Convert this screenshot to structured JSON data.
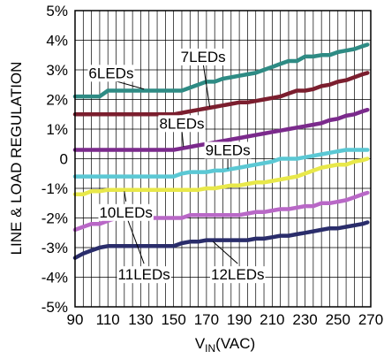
{
  "chart_data": {
    "type": "line",
    "title": "",
    "xlabel": "V",
    "xlabel_sub": "IN",
    "xlabel_unit": "(VAC)",
    "ylabel": "LINE & LOAD REGULATION",
    "xlim": [
      90,
      270
    ],
    "ylim": [
      -5,
      5
    ],
    "x_ticks": [
      "90",
      "110",
      "130",
      "150",
      "170",
      "190",
      "210",
      "230",
      "250",
      "270"
    ],
    "y_ticks": [
      "5%",
      "4%",
      "3%",
      "2%",
      "1%",
      "0",
      "-1%",
      "-2%",
      "-3%",
      "-4%",
      "-5%"
    ],
    "grid": true,
    "x_step": 5,
    "series": [
      {
        "name": "6LEDs",
        "color": "#2e8b84",
        "x": [
          90,
          95,
          100,
          105,
          110,
          115,
          120,
          125,
          130,
          135,
          140,
          145,
          150,
          155,
          160,
          165,
          170,
          175,
          180,
          185,
          190,
          195,
          200,
          205,
          210,
          215,
          220,
          225,
          230,
          235,
          240,
          245,
          250,
          255,
          260,
          265,
          268
        ],
        "values": [
          2.1,
          2.1,
          2.1,
          2.1,
          2.3,
          2.3,
          2.3,
          2.3,
          2.3,
          2.3,
          2.3,
          2.3,
          2.3,
          2.3,
          2.4,
          2.5,
          2.6,
          2.6,
          2.7,
          2.75,
          2.8,
          2.85,
          2.9,
          3.0,
          3.1,
          3.2,
          3.3,
          3.3,
          3.45,
          3.45,
          3.5,
          3.5,
          3.6,
          3.65,
          3.7,
          3.8,
          3.85
        ]
      },
      {
        "name": "7LEDs",
        "color": "#7b1e2e",
        "x": [
          90,
          95,
          100,
          105,
          110,
          115,
          120,
          125,
          130,
          135,
          140,
          145,
          150,
          155,
          160,
          165,
          170,
          175,
          180,
          185,
          190,
          195,
          200,
          205,
          210,
          215,
          220,
          225,
          230,
          235,
          240,
          245,
          250,
          255,
          260,
          265,
          268
        ],
        "values": [
          1.5,
          1.5,
          1.5,
          1.5,
          1.5,
          1.5,
          1.5,
          1.5,
          1.5,
          1.5,
          1.5,
          1.5,
          1.5,
          1.55,
          1.6,
          1.65,
          1.7,
          1.75,
          1.8,
          1.85,
          1.9,
          1.9,
          1.95,
          2.0,
          2.05,
          2.1,
          2.2,
          2.3,
          2.3,
          2.35,
          2.45,
          2.5,
          2.6,
          2.65,
          2.75,
          2.85,
          2.9
        ]
      },
      {
        "name": "8LEDs",
        "color": "#7b2a8c",
        "x": [
          90,
          95,
          100,
          105,
          110,
          115,
          120,
          125,
          130,
          135,
          140,
          145,
          150,
          155,
          160,
          165,
          170,
          175,
          180,
          185,
          190,
          195,
          200,
          205,
          210,
          215,
          220,
          225,
          230,
          235,
          240,
          245,
          250,
          255,
          260,
          265,
          268
        ],
        "values": [
          0.3,
          0.3,
          0.3,
          0.3,
          0.3,
          0.3,
          0.3,
          0.3,
          0.3,
          0.3,
          0.3,
          0.3,
          0.3,
          0.35,
          0.4,
          0.45,
          0.5,
          0.55,
          0.6,
          0.65,
          0.7,
          0.75,
          0.8,
          0.85,
          0.9,
          0.95,
          1.0,
          1.05,
          1.1,
          1.15,
          1.2,
          1.3,
          1.35,
          1.45,
          1.5,
          1.6,
          1.65
        ]
      },
      {
        "name": "9LEDs",
        "color": "#5bc8d4",
        "x": [
          90,
          95,
          100,
          105,
          110,
          115,
          120,
          125,
          130,
          135,
          140,
          145,
          150,
          155,
          160,
          165,
          170,
          175,
          180,
          185,
          190,
          195,
          200,
          205,
          210,
          215,
          220,
          225,
          230,
          235,
          240,
          245,
          250,
          255,
          260,
          265,
          268
        ],
        "values": [
          -0.6,
          -0.6,
          -0.6,
          -0.6,
          -0.6,
          -0.6,
          -0.6,
          -0.6,
          -0.6,
          -0.6,
          -0.6,
          -0.6,
          -0.6,
          -0.5,
          -0.45,
          -0.45,
          -0.45,
          -0.4,
          -0.4,
          -0.35,
          -0.3,
          -0.25,
          -0.2,
          -0.15,
          -0.1,
          0.0,
          0.0,
          0.0,
          0.05,
          0.1,
          0.15,
          0.2,
          0.25,
          0.3,
          0.3,
          0.3,
          0.3
        ]
      },
      {
        "name": "10LEDs",
        "color": "#e8e84a",
        "x": [
          90,
          95,
          100,
          105,
          110,
          115,
          120,
          125,
          130,
          135,
          140,
          145,
          150,
          155,
          160,
          165,
          170,
          175,
          180,
          185,
          190,
          195,
          200,
          205,
          210,
          215,
          220,
          225,
          230,
          235,
          240,
          245,
          250,
          255,
          260,
          265,
          268
        ],
        "values": [
          -1.2,
          -1.2,
          -1.1,
          -1.1,
          -1.05,
          -1.05,
          -1.05,
          -1.05,
          -1.05,
          -1.05,
          -1.05,
          -1.05,
          -1.05,
          -1.05,
          -1.05,
          -1.05,
          -1.0,
          -1.0,
          -0.95,
          -0.9,
          -0.9,
          -0.85,
          -0.8,
          -0.8,
          -0.75,
          -0.7,
          -0.65,
          -0.6,
          -0.5,
          -0.4,
          -0.3,
          -0.25,
          -0.2,
          -0.2,
          -0.1,
          -0.05,
          0.0
        ]
      },
      {
        "name": "11LEDs",
        "color": "#b968c7",
        "x": [
          90,
          95,
          100,
          105,
          110,
          115,
          120,
          125,
          130,
          135,
          140,
          145,
          150,
          155,
          160,
          165,
          170,
          175,
          180,
          185,
          190,
          195,
          200,
          205,
          210,
          215,
          220,
          225,
          230,
          235,
          240,
          245,
          250,
          255,
          260,
          265,
          268
        ],
        "values": [
          -2.4,
          -2.3,
          -2.2,
          -2.2,
          -2.1,
          -2.0,
          -2.0,
          -2.0,
          -2.0,
          -2.0,
          -2.0,
          -2.0,
          -2.0,
          -2.0,
          -1.9,
          -1.9,
          -1.9,
          -1.9,
          -1.9,
          -1.9,
          -1.9,
          -1.85,
          -1.8,
          -1.8,
          -1.75,
          -1.7,
          -1.7,
          -1.65,
          -1.6,
          -1.6,
          -1.5,
          -1.5,
          -1.45,
          -1.4,
          -1.3,
          -1.2,
          -1.15
        ]
      },
      {
        "name": "12LEDs",
        "color": "#2a2d6b",
        "x": [
          90,
          95,
          100,
          105,
          110,
          115,
          120,
          125,
          130,
          135,
          140,
          145,
          150,
          155,
          160,
          165,
          170,
          175,
          180,
          185,
          190,
          195,
          200,
          205,
          210,
          215,
          220,
          225,
          230,
          235,
          240,
          245,
          250,
          255,
          260,
          265,
          268
        ],
        "values": [
          -3.35,
          -3.2,
          -3.1,
          -3.0,
          -2.95,
          -2.95,
          -2.95,
          -2.95,
          -2.95,
          -2.95,
          -2.95,
          -2.95,
          -2.95,
          -2.85,
          -2.8,
          -2.8,
          -2.75,
          -2.75,
          -2.75,
          -2.75,
          -2.75,
          -2.75,
          -2.7,
          -2.7,
          -2.65,
          -2.6,
          -2.6,
          -2.55,
          -2.5,
          -2.45,
          -2.4,
          -2.35,
          -2.35,
          -2.3,
          -2.25,
          -2.2,
          -2.15
        ]
      }
    ],
    "annotations": [
      {
        "text": "6LEDs",
        "x": 112,
        "y": 2.9,
        "arrow_to": [
          132,
          2.35
        ]
      },
      {
        "text": "7LEDs",
        "x": 168,
        "y": 3.45,
        "arrow_to": [
          172,
          1.75
        ]
      },
      {
        "text": "8LEDs",
        "x": 155,
        "y": 1.2,
        "arrow_to": [
          156,
          0.4
        ]
      },
      {
        "text": "9LEDs",
        "x": 183,
        "y": 0.3,
        "arrow_to": [
          183,
          -0.35
        ]
      },
      {
        "text": "10LEDs",
        "x": 121,
        "y": -1.8,
        "arrow_to": [
          120,
          -1.1
        ]
      },
      {
        "text": "11LEDs",
        "x": 132,
        "y": -3.9,
        "arrow_to": [
          122,
          -2.05
        ]
      },
      {
        "text": "12LEDs",
        "x": 189,
        "y": -3.9,
        "arrow_to": [
          174,
          -2.8
        ]
      }
    ]
  }
}
